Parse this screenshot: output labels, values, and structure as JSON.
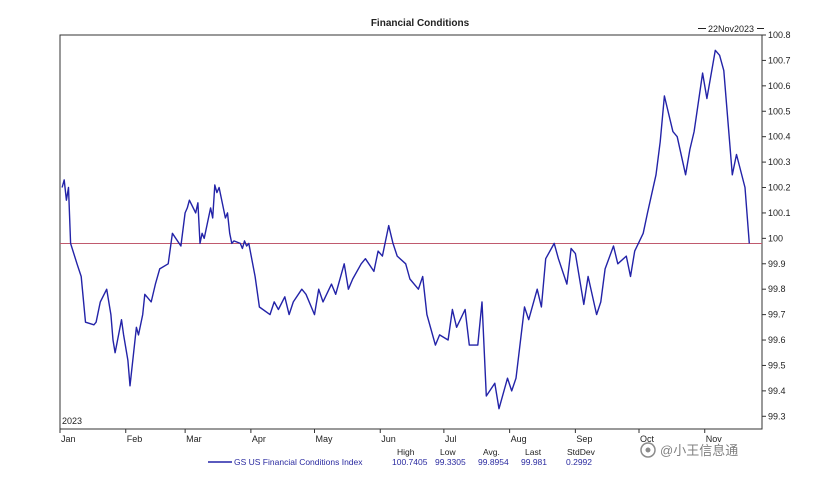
{
  "chart_data": {
    "type": "line",
    "title": "Financial Conditions",
    "date_label": "22Nov2023",
    "year_label": "2023",
    "xlabel": "",
    "ylabel": "",
    "ylim": [
      99.25,
      100.8
    ],
    "y_ticks": [
      "100.8",
      "100.7",
      "100.6",
      "100.5",
      "100.4",
      "100.3",
      "100.2",
      "100.1",
      "100",
      "99.9",
      "99.8",
      "99.7",
      "99.6",
      "99.5",
      "99.4",
      "99.3"
    ],
    "x_tick_labels": [
      "Jan",
      "Feb",
      "Mar",
      "Apr",
      "May",
      "Jun",
      "Jul",
      "Aug",
      "Sep",
      "Oct",
      "Nov"
    ],
    "reference_line": 99.98,
    "colors": {
      "series": "#2323a8",
      "reference": "#c05a6e",
      "axis": "#333333"
    },
    "series": [
      {
        "name": "GS US Financial Conditions Index",
        "x": [
          "2023-01-02",
          "2023-01-03",
          "2023-01-04",
          "2023-01-05",
          "2023-01-06",
          "2023-01-09",
          "2023-01-11",
          "2023-01-13",
          "2023-01-17",
          "2023-01-18",
          "2023-01-20",
          "2023-01-23",
          "2023-01-25",
          "2023-01-26",
          "2023-01-27",
          "2023-01-30",
          "2023-01-31",
          "2023-02-02",
          "2023-02-03",
          "2023-02-06",
          "2023-02-07",
          "2023-02-09",
          "2023-02-10",
          "2023-02-13",
          "2023-02-15",
          "2023-02-17",
          "2023-02-21",
          "2023-02-23",
          "2023-02-27",
          "2023-03-01",
          "2023-03-02",
          "2023-03-03",
          "2023-03-06",
          "2023-03-07",
          "2023-03-08",
          "2023-03-09",
          "2023-03-10",
          "2023-03-13",
          "2023-03-14",
          "2023-03-15",
          "2023-03-16",
          "2023-03-17",
          "2023-03-20",
          "2023-03-21",
          "2023-03-22",
          "2023-03-23",
          "2023-03-24",
          "2023-03-27",
          "2023-03-28",
          "2023-03-29",
          "2023-03-30",
          "2023-03-31",
          "2023-04-03",
          "2023-04-05",
          "2023-04-10",
          "2023-04-12",
          "2023-04-14",
          "2023-04-17",
          "2023-04-19",
          "2023-04-21",
          "2023-04-25",
          "2023-04-27",
          "2023-05-01",
          "2023-05-03",
          "2023-05-05",
          "2023-05-09",
          "2023-05-11",
          "2023-05-15",
          "2023-05-17",
          "2023-05-19",
          "2023-05-23",
          "2023-05-25",
          "2023-05-29",
          "2023-05-31",
          "2023-06-02",
          "2023-06-05",
          "2023-06-07",
          "2023-06-09",
          "2023-06-13",
          "2023-06-15",
          "2023-06-19",
          "2023-06-21",
          "2023-06-23",
          "2023-06-27",
          "2023-06-29",
          "2023-07-03",
          "2023-07-05",
          "2023-07-07",
          "2023-07-11",
          "2023-07-13",
          "2023-07-17",
          "2023-07-19",
          "2023-07-21",
          "2023-07-25",
          "2023-07-27",
          "2023-07-31",
          "2023-08-02",
          "2023-08-04",
          "2023-08-08",
          "2023-08-10",
          "2023-08-14",
          "2023-08-16",
          "2023-08-18",
          "2023-08-22",
          "2023-08-24",
          "2023-08-28",
          "2023-08-30",
          "2023-09-01",
          "2023-09-05",
          "2023-09-07",
          "2023-09-11",
          "2023-09-13",
          "2023-09-15",
          "2023-09-19",
          "2023-09-21",
          "2023-09-25",
          "2023-09-27",
          "2023-09-29",
          "2023-10-03",
          "2023-10-05",
          "2023-10-09",
          "2023-10-11",
          "2023-10-13",
          "2023-10-17",
          "2023-10-19",
          "2023-10-23",
          "2023-10-25",
          "2023-10-27",
          "2023-10-31",
          "2023-11-02",
          "2023-11-06",
          "2023-11-08",
          "2023-11-10",
          "2023-11-14",
          "2023-11-16",
          "2023-11-20",
          "2023-11-22"
        ],
        "values": [
          100.2,
          100.23,
          100.15,
          100.2,
          99.98,
          99.9,
          99.85,
          99.67,
          99.66,
          99.67,
          99.75,
          99.8,
          99.7,
          99.6,
          99.55,
          99.68,
          99.62,
          99.52,
          99.42,
          99.65,
          99.62,
          99.7,
          99.78,
          99.75,
          99.82,
          99.88,
          99.9,
          100.02,
          99.97,
          100.1,
          100.12,
          100.15,
          100.1,
          100.14,
          99.98,
          100.02,
          100.0,
          100.12,
          100.08,
          100.21,
          100.18,
          100.2,
          100.08,
          100.1,
          100.02,
          99.98,
          99.99,
          99.98,
          99.96,
          99.99,
          99.97,
          99.98,
          99.85,
          99.73,
          99.7,
          99.75,
          99.72,
          99.77,
          99.7,
          99.75,
          99.8,
          99.78,
          99.7,
          99.8,
          99.75,
          99.82,
          99.78,
          99.9,
          99.8,
          99.84,
          99.9,
          99.92,
          99.87,
          99.95,
          99.93,
          100.05,
          99.98,
          99.93,
          99.9,
          99.84,
          99.8,
          99.85,
          99.7,
          99.58,
          99.62,
          99.6,
          99.72,
          99.65,
          99.72,
          99.58,
          99.58,
          99.75,
          99.38,
          99.43,
          99.33,
          99.45,
          99.4,
          99.45,
          99.73,
          99.68,
          99.8,
          99.73,
          99.92,
          99.98,
          99.92,
          99.82,
          99.96,
          99.94,
          99.74,
          99.85,
          99.7,
          99.75,
          99.88,
          99.97,
          99.9,
          99.93,
          99.85,
          99.95,
          100.02,
          100.1,
          100.25,
          100.38,
          100.56,
          100.42,
          100.4,
          100.25,
          100.35,
          100.42,
          100.65,
          100.55,
          100.74,
          100.72,
          100.66,
          100.25,
          100.33,
          100.2,
          99.98
        ]
      }
    ],
    "stats": {
      "headers": [
        "High",
        "Low",
        "Avg.",
        "Last",
        "StdDev"
      ],
      "values": [
        "100.7405",
        "99.3305",
        "99.8954",
        "99.981",
        "0.2992"
      ]
    },
    "watermark": "@小王信息通"
  }
}
